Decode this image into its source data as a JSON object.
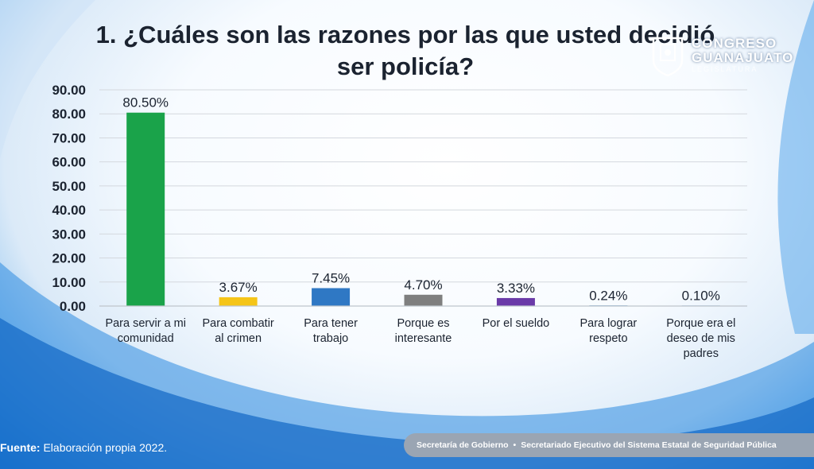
{
  "title_line1": "1. ¿Cuáles son las razones por las que usted decidió",
  "title_line2": "ser policía?",
  "logo": {
    "line1": "CONGRESO",
    "line2": "GUANAJUATO",
    "line3": "LEGISLATURA"
  },
  "footer": {
    "source_label": "Fuente:",
    "source_text": "Elaboración propia 2022.",
    "org1": "Secretaría de Gobierno",
    "separator": "•",
    "org2": "Secretariado Ejecutivo del Sistema Estatal de Seguridad Pública"
  },
  "chart_data": {
    "type": "bar",
    "title": "1. ¿Cuáles son las razones por las que usted decidió ser policía?",
    "xlabel": "",
    "ylabel": "",
    "ylim": [
      0,
      90
    ],
    "yticks": [
      "0.00",
      "10.00",
      "20.00",
      "30.00",
      "40.00",
      "50.00",
      "60.00",
      "70.00",
      "80.00",
      "90.00"
    ],
    "grid": true,
    "legend": "none",
    "categories": [
      [
        "Para servir a mi",
        "comunidad"
      ],
      [
        "Para combatir",
        "al crimen"
      ],
      [
        "Para tener",
        "trabajo"
      ],
      [
        "Porque es",
        "interesante"
      ],
      [
        "Por el sueldo"
      ],
      [
        "Para lograr",
        "respeto"
      ],
      [
        "Porque era el",
        "deseo de mis",
        "padres"
      ]
    ],
    "values": [
      80.5,
      3.67,
      7.45,
      4.7,
      3.33,
      0.24,
      0.1
    ],
    "data_labels": [
      "80.50%",
      "3.67%",
      "7.45%",
      "4.70%",
      "3.33%",
      "0.24%",
      "0.10%"
    ],
    "colors": [
      "#1aa34a",
      "#f5c518",
      "#2f78c4",
      "#7f7f7f",
      "#6a3aa8",
      "#1f6fbf",
      "#1f6fbf"
    ]
  }
}
